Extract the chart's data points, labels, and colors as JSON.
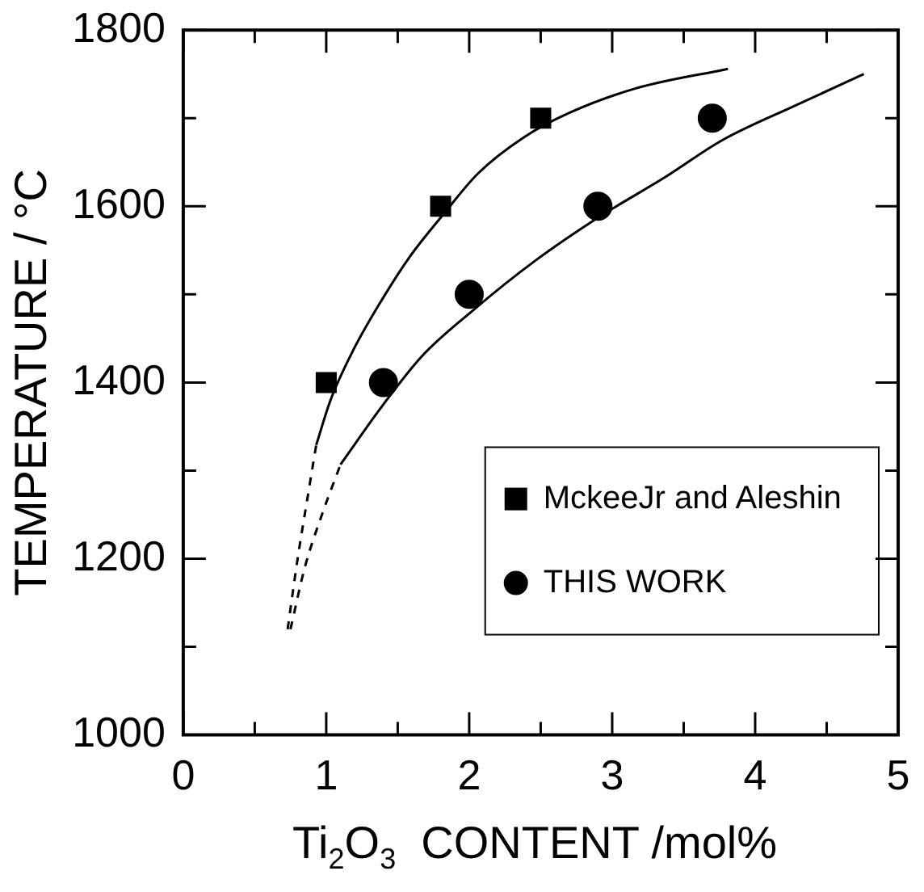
{
  "chart_data": {
    "type": "scatter",
    "xlabel": "Ti$_{2}$O$_{3}$  CONTENT /mol%",
    "ylabel": "TEMPERATURE / °C",
    "xlim": [
      0,
      5
    ],
    "ylim": [
      1000,
      1800
    ],
    "xticks": [
      0,
      {
        "value": 0.5,
        "label": null
      },
      1,
      {
        "value": 1.5,
        "label": null
      },
      2,
      {
        "value": 2.5,
        "label": null
      },
      3,
      {
        "value": 3.5,
        "label": null
      },
      4,
      {
        "value": 4.5,
        "label": null
      },
      5
    ],
    "yticks": [
      1000,
      {
        "value": 1100,
        "label": null
      },
      1200,
      {
        "value": 1300,
        "label": null
      },
      1400,
      {
        "value": 1500,
        "label": null
      },
      1600,
      {
        "value": 1700,
        "label": null
      },
      1800
    ],
    "grid": false,
    "legend": "bottom right",
    "series": [
      {
        "name": "MckeeJr and Aleshin",
        "type": "scatter",
        "marker": "square",
        "color": "#000000",
        "x": [
          1,
          1.8,
          2.5
        ],
        "values": [
          1400,
          1600,
          1700
        ]
      },
      {
        "name": "THIS WORK",
        "type": "scatter",
        "marker": "circle",
        "color": "#000000",
        "x": [
          1.4,
          2,
          2.9,
          3.7
        ],
        "values": [
          1400,
          1500,
          1600,
          1700
        ]
      },
      {
        "type": "line",
        "marker": "none",
        "line_style": "solid",
        "color": "#000000",
        "x": [
          0.93,
          1.03,
          1.19,
          1.39,
          1.59,
          1.81,
          2.06,
          2.38,
          2.7,
          3.17,
          3.81
        ],
        "values": [
          1329,
          1380,
          1437,
          1494,
          1544,
          1589,
          1637,
          1678,
          1706,
          1734,
          1756
        ]
      },
      {
        "type": "line",
        "marker": "none",
        "line_style": "dashed",
        "color": "#000000",
        "x": [
          0.73,
          0.8,
          0.87,
          0.93
        ],
        "values": [
          1120,
          1200,
          1270,
          1329
        ]
      },
      {
        "type": "line",
        "marker": "none",
        "line_style": "solid",
        "color": "#000000",
        "x": [
          1.1,
          1.39,
          1.67,
          2.02,
          2.46,
          2.92,
          3.37,
          3.77,
          4.29,
          4.76
        ],
        "values": [
          1307,
          1373,
          1430,
          1481,
          1538,
          1589,
          1633,
          1675,
          1715,
          1750
        ]
      },
      {
        "type": "line",
        "marker": "none",
        "line_style": "dashed",
        "color": "#000000",
        "x": [
          0.75,
          0.85,
          0.97,
          1.1
        ],
        "values": [
          1120,
          1190,
          1250,
          1307
        ]
      }
    ]
  }
}
